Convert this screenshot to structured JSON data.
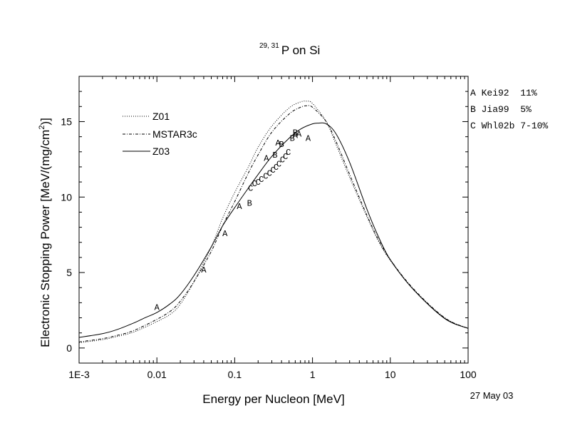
{
  "chart_data": {
    "type": "line",
    "title": "P on Si",
    "title_superscript": "29, 31",
    "xlabel": "Energy per Nucleon [MeV]",
    "ylabel_main": "Electronic Stopping Power [MeV/(mg/cm",
    "ylabel_sup": "2",
    "ylabel_end": ")]",
    "x_scale": "log",
    "xlim": [
      0.001,
      100
    ],
    "ylim": [
      -1,
      18
    ],
    "x_ticks": [
      {
        "value": 0.001,
        "label": "1E-3"
      },
      {
        "value": 0.01,
        "label": "0.01"
      },
      {
        "value": 0.1,
        "label": "0.1"
      },
      {
        "value": 1,
        "label": "1"
      },
      {
        "value": 10,
        "label": "10"
      },
      {
        "value": 100,
        "label": "100"
      }
    ],
    "y_ticks": [
      {
        "value": 0,
        "label": "0"
      },
      {
        "value": 5,
        "label": "5"
      },
      {
        "value": 10,
        "label": "10"
      },
      {
        "value": 15,
        "label": "15"
      }
    ],
    "series": [
      {
        "name": "Z01",
        "style": "dotted",
        "x": [
          0.001,
          0.002,
          0.003,
          0.005,
          0.01,
          0.015,
          0.02,
          0.03,
          0.05,
          0.07,
          0.1,
          0.15,
          0.2,
          0.3,
          0.5,
          0.7,
          0.85,
          1.0,
          1.5,
          2,
          3,
          5,
          7,
          10,
          20,
          50,
          100
        ],
        "y": [
          0.35,
          0.55,
          0.75,
          1.05,
          1.75,
          2.25,
          2.9,
          4.4,
          6.7,
          8.6,
          10.3,
          12.0,
          13.3,
          14.7,
          15.9,
          16.3,
          16.35,
          16.2,
          15.0,
          13.5,
          11.3,
          8.7,
          7.1,
          5.8,
          3.85,
          2.0,
          1.3
        ]
      },
      {
        "name": "MSTAR3c",
        "style": "dashdot",
        "x": [
          0.001,
          0.002,
          0.003,
          0.005,
          0.01,
          0.015,
          0.02,
          0.03,
          0.05,
          0.07,
          0.1,
          0.15,
          0.2,
          0.3,
          0.5,
          0.7,
          0.85,
          1.0,
          1.5,
          2,
          3,
          5,
          7,
          10,
          20,
          50,
          100
        ],
        "y": [
          0.4,
          0.62,
          0.82,
          1.15,
          1.9,
          2.45,
          3.1,
          4.4,
          6.4,
          8.1,
          9.7,
          11.6,
          12.8,
          14.3,
          15.5,
          15.95,
          16.05,
          15.95,
          15.0,
          13.7,
          11.5,
          8.8,
          7.2,
          5.85,
          3.9,
          2.0,
          1.3
        ]
      },
      {
        "name": "Z03",
        "style": "solid",
        "x": [
          0.001,
          0.002,
          0.003,
          0.005,
          0.007,
          0.01,
          0.015,
          0.02,
          0.03,
          0.05,
          0.07,
          0.1,
          0.15,
          0.2,
          0.3,
          0.5,
          0.7,
          1.0,
          1.2,
          1.5,
          2,
          3,
          5,
          7,
          10,
          20,
          50,
          100
        ],
        "y": [
          0.7,
          0.95,
          1.2,
          1.65,
          2.0,
          2.35,
          2.95,
          3.55,
          4.8,
          6.7,
          8.1,
          9.3,
          10.6,
          11.5,
          12.7,
          13.9,
          14.5,
          14.85,
          14.9,
          14.85,
          14.2,
          12.3,
          9.2,
          7.4,
          5.85,
          3.85,
          1.95,
          1.3
        ]
      }
    ],
    "legend": [
      {
        "name": "Z01",
        "style": "dotted"
      },
      {
        "name": "MSTAR3c",
        "style": "dashdot"
      },
      {
        "name": "Z03",
        "style": "solid"
      }
    ],
    "legend_placement": "top-left",
    "annotations": [
      {
        "label": "A Kei92  11%"
      },
      {
        "label": "B Jia99  5%"
      },
      {
        "label": "C Whl02b 7-10%"
      }
    ],
    "markers": [
      {
        "label": "A",
        "x": 0.01,
        "y": 2.7
      },
      {
        "label": "A",
        "x": 0.04,
        "y": 5.2
      },
      {
        "label": "A",
        "x": 0.075,
        "y": 7.6
      },
      {
        "label": "A",
        "x": 0.115,
        "y": 9.4
      },
      {
        "label": "A",
        "x": 0.255,
        "y": 12.6
      },
      {
        "label": "A",
        "x": 0.6,
        "y": 14.1
      },
      {
        "label": "A",
        "x": 0.67,
        "y": 14.2
      },
      {
        "label": "A",
        "x": 0.88,
        "y": 13.9
      },
      {
        "label": "B",
        "x": 0.155,
        "y": 9.6
      },
      {
        "label": "B",
        "x": 0.33,
        "y": 12.8
      },
      {
        "label": "B",
        "x": 0.4,
        "y": 13.5
      },
      {
        "label": "B",
        "x": 0.55,
        "y": 13.9
      },
      {
        "label": "B",
        "x": 0.6,
        "y": 14.3
      },
      {
        "label": "A",
        "x": 0.36,
        "y": 13.6
      },
      {
        "label": "C",
        "x": 0.16,
        "y": 10.6
      },
      {
        "label": "C",
        "x": 0.18,
        "y": 10.9
      },
      {
        "label": "C",
        "x": 0.2,
        "y": 11.0
      },
      {
        "label": "C",
        "x": 0.22,
        "y": 11.2
      },
      {
        "label": "C",
        "x": 0.25,
        "y": 11.4
      },
      {
        "label": "C",
        "x": 0.28,
        "y": 11.6
      },
      {
        "label": "C",
        "x": 0.31,
        "y": 11.8
      },
      {
        "label": "C",
        "x": 0.34,
        "y": 12.0
      },
      {
        "label": "C",
        "x": 0.37,
        "y": 12.2
      },
      {
        "label": "C",
        "x": 0.41,
        "y": 12.5
      },
      {
        "label": "C",
        "x": 0.45,
        "y": 12.7
      },
      {
        "label": "C",
        "x": 0.49,
        "y": 13.0
      }
    ],
    "date": "27 May 03",
    "grid": false
  }
}
